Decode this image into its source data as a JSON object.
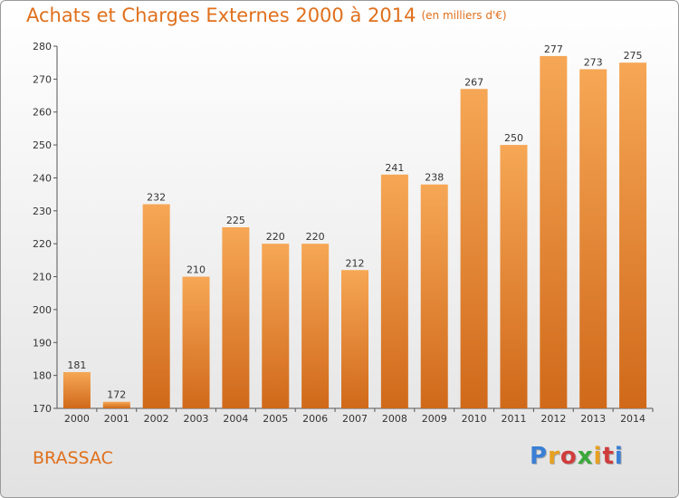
{
  "header": {
    "title": "Achats et Charges Externes 2000 à 2014",
    "unit": "(en milliers d'€)"
  },
  "footer": {
    "place": "BRASSAC",
    "logo_letters": [
      "P",
      "r",
      "o",
      "x",
      "i",
      "t",
      "i"
    ],
    "logo_colors": [
      "#3a7fd5",
      "#e8a020",
      "#d03c3c",
      "#3aa83a",
      "#e8a020",
      "#d03c3c",
      "#3a7fd5"
    ]
  },
  "colors": {
    "accent": "#e0701c",
    "bar_top": "#f6a755",
    "bar_bottom": "#d0691a"
  },
  "chart_data": {
    "type": "bar",
    "title": "Achats et Charges Externes 2000 à 2014",
    "subtitle": "(en milliers d'€)",
    "categories": [
      "2000",
      "2001",
      "2002",
      "2003",
      "2004",
      "2005",
      "2006",
      "2007",
      "2008",
      "2009",
      "2010",
      "2011",
      "2012",
      "2013",
      "2014"
    ],
    "values": [
      181,
      172,
      232,
      210,
      225,
      220,
      220,
      212,
      241,
      238,
      267,
      250,
      277,
      273,
      275
    ],
    "ylim": [
      170,
      280
    ],
    "yticks": [
      170,
      180,
      190,
      200,
      210,
      220,
      230,
      240,
      250,
      260,
      270,
      280
    ],
    "xlabel": "",
    "ylabel": "",
    "grid": false,
    "data_labels": true
  }
}
